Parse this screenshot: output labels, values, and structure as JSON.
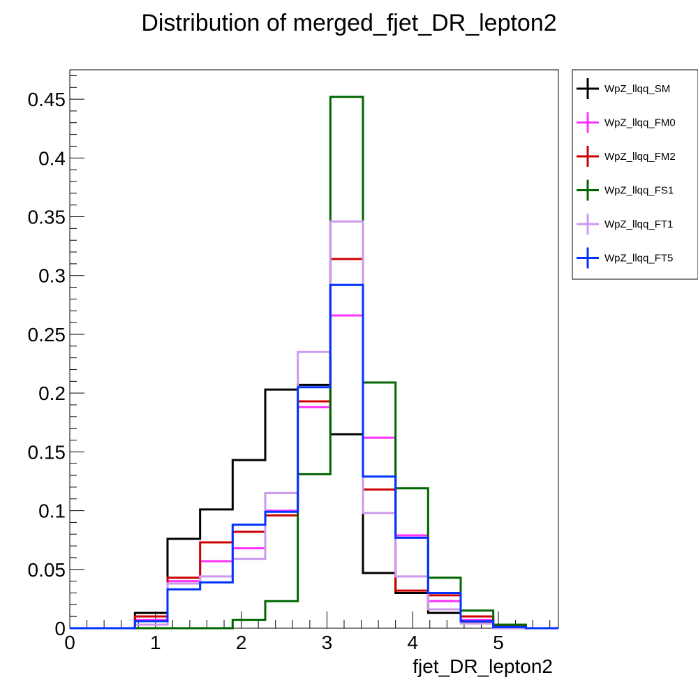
{
  "chart_data": {
    "type": "histogram-step",
    "title": "Distribution of merged_fjet_DR_lepton2",
    "xlabel": "fjet_DR_lepton2",
    "ylabel": "",
    "xlim": [
      0,
      5.7
    ],
    "ylim": [
      0,
      0.475
    ],
    "grid": false,
    "legend_position": "top-right-outside",
    "bin_edges": [
      0,
      0.38,
      0.76,
      1.14,
      1.52,
      1.9,
      2.28,
      2.66,
      3.04,
      3.42,
      3.8,
      4.18,
      4.56,
      4.94,
      5.32,
      5.7
    ],
    "x_ticks": [
      {
        "value": 0,
        "label": "0"
      },
      {
        "value": 1,
        "label": "1"
      },
      {
        "value": 2,
        "label": "2"
      },
      {
        "value": 3,
        "label": "3"
      },
      {
        "value": 4,
        "label": "4"
      },
      {
        "value": 5,
        "label": "5"
      }
    ],
    "y_ticks": [
      {
        "value": 0,
        "label": "0"
      },
      {
        "value": 0.05,
        "label": "0.05"
      },
      {
        "value": 0.1,
        "label": "0.1"
      },
      {
        "value": 0.15,
        "label": "0.15"
      },
      {
        "value": 0.2,
        "label": "0.2"
      },
      {
        "value": 0.25,
        "label": "0.25"
      },
      {
        "value": 0.3,
        "label": "0.3"
      },
      {
        "value": 0.35,
        "label": "0.35"
      },
      {
        "value": 0.4,
        "label": "0.4"
      },
      {
        "value": 0.45,
        "label": "0.45"
      }
    ],
    "series": [
      {
        "name": "WpZ_llqq_SM",
        "color": "#000000",
        "values": [
          0,
          0,
          0.013,
          0.076,
          0.101,
          0.143,
          0.203,
          0.207,
          0.165,
          0.047,
          0.03,
          0.013,
          0.005,
          0,
          0
        ]
      },
      {
        "name": "WpZ_llqq_FM0",
        "color": "#ff33ff",
        "values": [
          0,
          0,
          0.007,
          0.04,
          0.057,
          0.068,
          0.1,
          0.188,
          0.266,
          0.162,
          0.079,
          0.023,
          0.007,
          0.001,
          0
        ]
      },
      {
        "name": "WpZ_llqq_FM2",
        "color": "#cc0000",
        "values": [
          0,
          0,
          0.01,
          0.043,
          0.073,
          0.082,
          0.096,
          0.193,
          0.314,
          0.118,
          0.032,
          0.028,
          0.01,
          0.002,
          0
        ]
      },
      {
        "name": "WpZ_llqq_FS1",
        "color": "#006600",
        "values": [
          0,
          0,
          0,
          0,
          0,
          0.007,
          0.023,
          0.131,
          0.452,
          0.209,
          0.119,
          0.043,
          0.015,
          0.003,
          0
        ]
      },
      {
        "name": "WpZ_llqq_FT1",
        "color": "#cc99ee",
        "values": [
          0,
          0,
          0.003,
          0.038,
          0.044,
          0.059,
          0.115,
          0.235,
          0.346,
          0.098,
          0.044,
          0.016,
          0.004,
          0,
          0
        ]
      },
      {
        "name": "WpZ_llqq_FT5",
        "color": "#0033ff",
        "values": [
          0,
          0,
          0.006,
          0.033,
          0.039,
          0.088,
          0.099,
          0.205,
          0.292,
          0.129,
          0.077,
          0.03,
          0.006,
          0.001,
          0
        ]
      }
    ]
  }
}
